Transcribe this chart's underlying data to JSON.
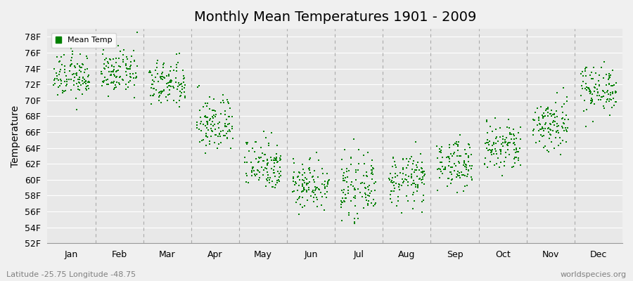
{
  "title": "Monthly Mean Temperatures 1901 - 2009",
  "ylabel": "Temperature",
  "xlabel_bottom_left": "Latitude -25.75 Longitude -48.75",
  "xlabel_bottom_right": "worldspecies.org",
  "legend_label": "Mean Temp",
  "ylim": [
    52,
    79
  ],
  "yticks": [
    52,
    54,
    56,
    58,
    60,
    62,
    64,
    66,
    68,
    70,
    72,
    74,
    76,
    78
  ],
  "ytick_labels": [
    "52F",
    "54F",
    "56F",
    "58F",
    "60F",
    "62F",
    "64F",
    "66F",
    "68F",
    "70F",
    "72F",
    "74F",
    "76F",
    "78F"
  ],
  "months": [
    "Jan",
    "Feb",
    "Mar",
    "Apr",
    "May",
    "Jun",
    "Jul",
    "Aug",
    "Sep",
    "Oct",
    "Nov",
    "Dec"
  ],
  "n_years": 109,
  "dot_color": "#008000",
  "background_color": "#f0f0f0",
  "plot_bg_color": "#e8e8e8",
  "grid_color": "#ffffff",
  "dashed_line_color": "#aaaaaa",
  "title_fontsize": 14,
  "axis_label_fontsize": 10,
  "tick_fontsize": 9,
  "monthly_means": [
    73.0,
    73.5,
    72.0,
    67.0,
    62.0,
    59.5,
    59.0,
    60.0,
    62.0,
    64.0,
    67.0,
    71.5
  ],
  "monthly_stds": [
    1.4,
    1.3,
    1.5,
    1.8,
    1.7,
    1.6,
    1.8,
    1.6,
    1.5,
    1.7,
    1.8,
    1.5
  ],
  "seed": 12345
}
